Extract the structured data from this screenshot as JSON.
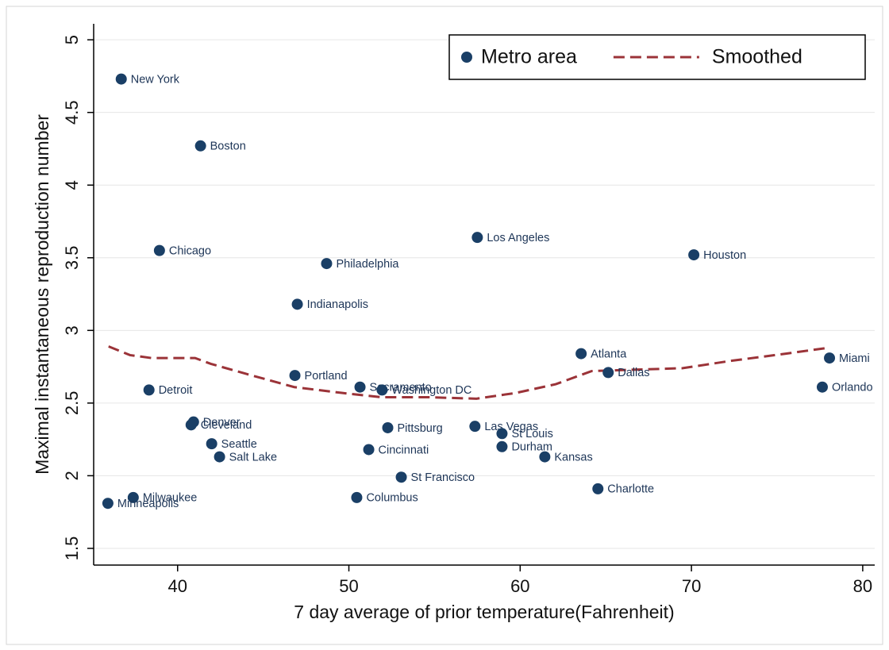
{
  "chart_data": {
    "type": "scatter",
    "xlabel": "7 day average of prior temperature(Fahrenheit)",
    "ylabel": "Maximal instantaneous reproduction number",
    "xlim": [
      35.1,
      80.7
    ],
    "ylim": [
      1.385,
      5.11
    ],
    "xticks": [
      40,
      50,
      60,
      70,
      80
    ],
    "yticks": [
      1.5,
      2,
      2.5,
      3,
      3.5,
      4,
      4.5,
      5
    ],
    "grid": true,
    "legend": "top-right",
    "series": [
      {
        "name": "Metro area",
        "type": "scatter",
        "color": "#1a3f66",
        "point_labels": [
          "New York",
          "Boston",
          "Chicago",
          "Philadelphia",
          "Los Angeles",
          "Houston",
          "Indianapolis",
          "Atlanta",
          "Miami",
          "Orlando",
          "Dallas",
          "Portland",
          "Detroit",
          "Sacramento",
          "Washington DC",
          "Denver",
          "Cleveland",
          "Seattle",
          "Salt Lake",
          "Pittsburg",
          "Cincinnati",
          "Las Vegas",
          "St Louis",
          "Durham",
          "Kansas",
          "St Francisco",
          "Columbus",
          "Charlotte",
          "Milwaukee",
          "Minneapolis"
        ],
        "x": [
          36.71,
          41.34,
          38.94,
          48.7,
          57.5,
          70.14,
          46.99,
          63.56,
          78.06,
          77.64,
          65.14,
          46.85,
          38.33,
          50.65,
          51.94,
          40.93,
          40.79,
          41.99,
          42.45,
          52.27,
          51.16,
          57.36,
          58.94,
          58.94,
          61.44,
          53.06,
          50.46,
          64.54,
          37.41,
          35.93
        ],
        "values": [
          4.73,
          4.27,
          3.55,
          3.46,
          3.64,
          3.52,
          3.18,
          2.84,
          2.81,
          2.61,
          2.71,
          2.69,
          2.59,
          2.61,
          2.59,
          2.37,
          2.35,
          2.22,
          2.13,
          2.33,
          2.18,
          2.34,
          2.29,
          2.2,
          2.13,
          1.99,
          1.85,
          1.91,
          1.85,
          1.81
        ]
      },
      {
        "name": "Smoothed",
        "type": "line",
        "line_style": "dashed",
        "color": "#9b3338",
        "x": [
          35.97,
          37.22,
          38.47,
          41.02,
          41.94,
          44.03,
          46.81,
          49.58,
          51.9,
          54.68,
          57.45,
          59.77,
          62.08,
          64.17,
          66.72,
          69.49,
          72.27,
          75.51,
          77.96
        ],
        "values": [
          2.89,
          2.83,
          2.81,
          2.81,
          2.77,
          2.7,
          2.61,
          2.57,
          2.54,
          2.54,
          2.53,
          2.57,
          2.63,
          2.72,
          2.73,
          2.74,
          2.79,
          2.84,
          2.88
        ]
      }
    ]
  }
}
